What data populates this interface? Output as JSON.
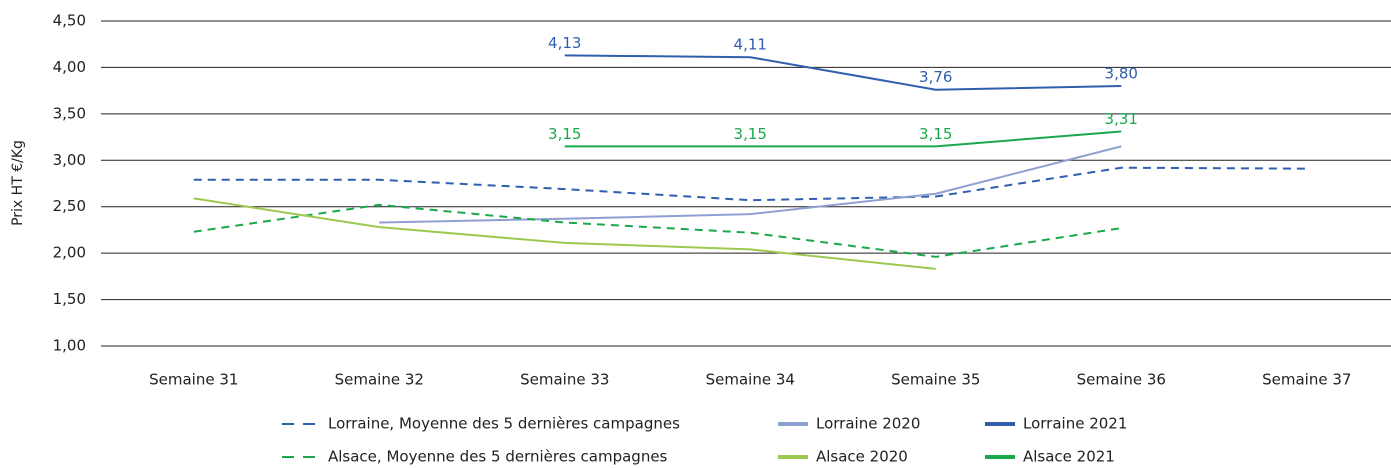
{
  "chart_data": {
    "type": "line",
    "y_label": "Prix HT €/Kg",
    "categories": [
      "Semaine 31",
      "Semaine 32",
      "Semaine 33",
      "Semaine 34",
      "Semaine 35",
      "Semaine 36",
      "Semaine 37"
    ],
    "ylim": [
      1,
      4.5
    ],
    "yticks": [
      {
        "value": 1,
        "label": "1,00"
      },
      {
        "value": 1.5,
        "label": "1,50"
      },
      {
        "value": 2,
        "label": "2,00"
      },
      {
        "value": 2.5,
        "label": "2,50"
      },
      {
        "value": 3,
        "label": "3,00"
      },
      {
        "value": 3.5,
        "label": "3,50"
      },
      {
        "value": 4,
        "label": "4,00"
      },
      {
        "value": 4.5,
        "label": "4,50"
      }
    ],
    "grid": true,
    "legend": "bottom",
    "series": [
      {
        "name": "Lorraine, Moyenne des 5 dernières campagnes",
        "color": "#2f5fae",
        "dashed": true,
        "values": [
          2.79,
          2.79,
          2.69,
          2.57,
          2.61,
          2.92,
          2.91
        ]
      },
      {
        "name": "Lorraine 2020",
        "color": "#8e9fd2",
        "dashed": false,
        "values": [
          null,
          2.33,
          2.37,
          2.42,
          2.64,
          3.15,
          null
        ]
      },
      {
        "name": "Lorraine 2021",
        "color": "#2f5fae",
        "dashed": false,
        "values": [
          null,
          null,
          4.13,
          4.11,
          3.76,
          3.8,
          null
        ],
        "value_labels": [
          null,
          null,
          "4,13",
          "4,11",
          "3,76",
          "3,80",
          null
        ]
      },
      {
        "name": "Alsace, Moyenne des 5 dernières campagnes",
        "color": "#1ba84c",
        "dashed": true,
        "values": [
          2.23,
          2.52,
          2.33,
          2.22,
          1.96,
          2.27,
          null
        ]
      },
      {
        "name": "Alsace 2020",
        "color": "#9cc94f",
        "dashed": false,
        "values": [
          2.59,
          2.28,
          2.11,
          2.04,
          1.83,
          null,
          null
        ]
      },
      {
        "name": "Alsace 2021",
        "color": "#1ba84c",
        "dashed": false,
        "values": [
          null,
          null,
          3.15,
          3.15,
          3.15,
          3.31,
          null
        ],
        "value_labels": [
          null,
          null,
          "3,15",
          "3,15",
          "3,15",
          "3,31",
          null
        ]
      }
    ]
  }
}
